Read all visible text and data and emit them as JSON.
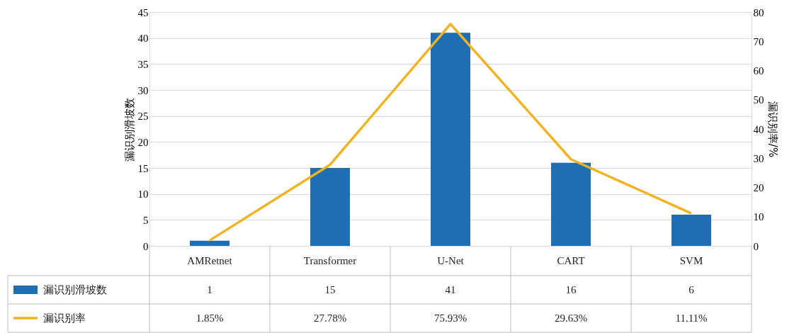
{
  "chart_data": {
    "type": "bar",
    "categories": [
      "AMRetnet",
      "Transformer",
      "U-Net",
      "CART",
      "SVM"
    ],
    "series": [
      {
        "name": "漏识别滑坡数",
        "color": "#1f6eb4",
        "values": [
          1,
          15,
          41,
          16,
          6
        ],
        "value_labels": [
          "1",
          "15",
          "41",
          "16",
          "6"
        ]
      },
      {
        "name": "漏识别率",
        "type": "line",
        "axis": "y2",
        "color": "#f0b323",
        "values": [
          1.85,
          27.78,
          75.93,
          29.63,
          11.11
        ],
        "value_labels": [
          "1.85%",
          "27.78%",
          "75.93%",
          "29.63%",
          "11.11%"
        ]
      }
    ],
    "ylabel": "漏识别滑坡数",
    "y2label": "漏识别率/%",
    "ylim": [
      0,
      45
    ],
    "yticks": [
      0,
      5,
      10,
      15,
      20,
      25,
      30,
      35,
      40,
      45
    ],
    "y2lim": [
      0,
      80
    ],
    "y2ticks": [
      0,
      10,
      20,
      30,
      40,
      50,
      60,
      70,
      80
    ],
    "grid": "y",
    "legend": "bottom",
    "marker": "none",
    "line_style": "solid"
  }
}
